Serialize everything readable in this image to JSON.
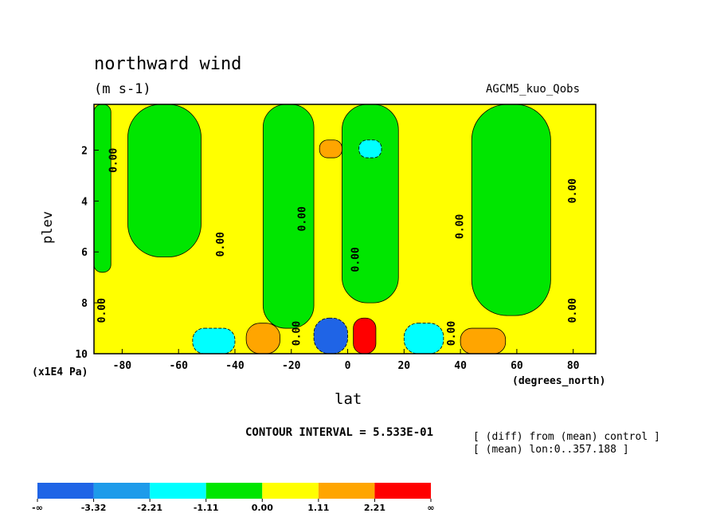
{
  "chart_data": {
    "type": "heatmap",
    "title": "northward wind",
    "subtitle": "(m s-1)",
    "experiment": "AGCM5_kuo_Qobs",
    "xlabel": "lat",
    "x_units": "(degrees_north)",
    "ylabel": "plev",
    "y_units": "(x1E4 Pa)",
    "x_ticks": [
      -80,
      -60,
      -40,
      -20,
      0,
      20,
      40,
      60,
      80
    ],
    "x_tick_labels": [
      "-80",
      "-60",
      "-40",
      "-20",
      "0",
      "20",
      "40",
      "60",
      "80"
    ],
    "y_ticks": [
      2,
      4,
      6,
      8,
      10
    ],
    "y_tick_labels": [
      "2",
      "4",
      "6",
      "8",
      "10"
    ],
    "xlim": [
      -90,
      88
    ],
    "ylim": [
      0.2,
      10
    ],
    "y_inverted": true,
    "contour_interval": "CONTOUR INTERVAL = 5.533E-01",
    "notes": [
      "[ (diff) from (mean) control ]",
      "[ (mean) lon:0..357.188 ]"
    ],
    "contour_labels": [
      {
        "text": "0.00",
        "lat": -82,
        "plev": 2.4
      },
      {
        "text": "0.00",
        "lat": -86,
        "plev": 8.3
      },
      {
        "text": "0.00",
        "lat": -44,
        "plev": 5.7
      },
      {
        "text": "0.00",
        "lat": -15,
        "plev": 4.7
      },
      {
        "text": "0.00",
        "lat": -17,
        "plev": 9.2
      },
      {
        "text": "0.00",
        "lat": 4,
        "plev": 6.3
      },
      {
        "text": "0.00",
        "lat": 38,
        "plev": 9.2
      },
      {
        "text": "0.00",
        "lat": 41,
        "plev": 5.0
      },
      {
        "text": "0.00",
        "lat": 81,
        "plev": 3.6
      },
      {
        "text": "0.00",
        "lat": 81,
        "plev": 8.3
      }
    ],
    "colorbar": {
      "colors": [
        "#1f64e6",
        "#1e9bea",
        "#00ffff",
        "#00e600",
        "#ffff00",
        "#ffa500",
        "#ff0000"
      ],
      "labels": [
        "-∞",
        "-3.32",
        "-2.21",
        "-1.11",
        "0.00",
        "1.11",
        "2.21",
        "∞"
      ]
    },
    "regions": [
      {
        "level": "neg1",
        "lat": [
          -90,
          -84
        ],
        "plev": [
          0.2,
          6.8
        ]
      },
      {
        "level": "neg1",
        "lat": [
          -78,
          -52
        ],
        "plev": [
          0.2,
          6.2
        ]
      },
      {
        "level": "neg1",
        "lat": [
          -30,
          -12
        ],
        "plev": [
          0.2,
          9.0
        ]
      },
      {
        "level": "neg1",
        "lat": [
          -2,
          18
        ],
        "plev": [
          0.2,
          8.0
        ]
      },
      {
        "level": "neg1",
        "lat": [
          44,
          72
        ],
        "plev": [
          0.2,
          8.5
        ]
      },
      {
        "level": "neg2",
        "lat": [
          -55,
          -40
        ],
        "plev": [
          9.0,
          10
        ]
      },
      {
        "level": "neg3",
        "lat": [
          -12,
          0
        ],
        "plev": [
          8.6,
          10
        ]
      },
      {
        "level": "neg2",
        "lat": [
          20,
          34
        ],
        "plev": [
          8.8,
          10
        ]
      },
      {
        "level": "neg2",
        "lat": [
          4,
          12
        ],
        "plev": [
          1.6,
          2.3
        ]
      },
      {
        "level": "pos1",
        "lat": [
          -36,
          -24
        ],
        "plev": [
          8.8,
          10
        ]
      },
      {
        "level": "pos3",
        "lat": [
          2,
          10
        ],
        "plev": [
          8.6,
          10
        ]
      },
      {
        "level": "pos2",
        "lat": [
          40,
          56
        ],
        "plev": [
          9.0,
          10
        ]
      },
      {
        "level": "pos2",
        "lat": [
          -10,
          -2
        ],
        "plev": [
          1.6,
          2.3
        ]
      }
    ]
  }
}
